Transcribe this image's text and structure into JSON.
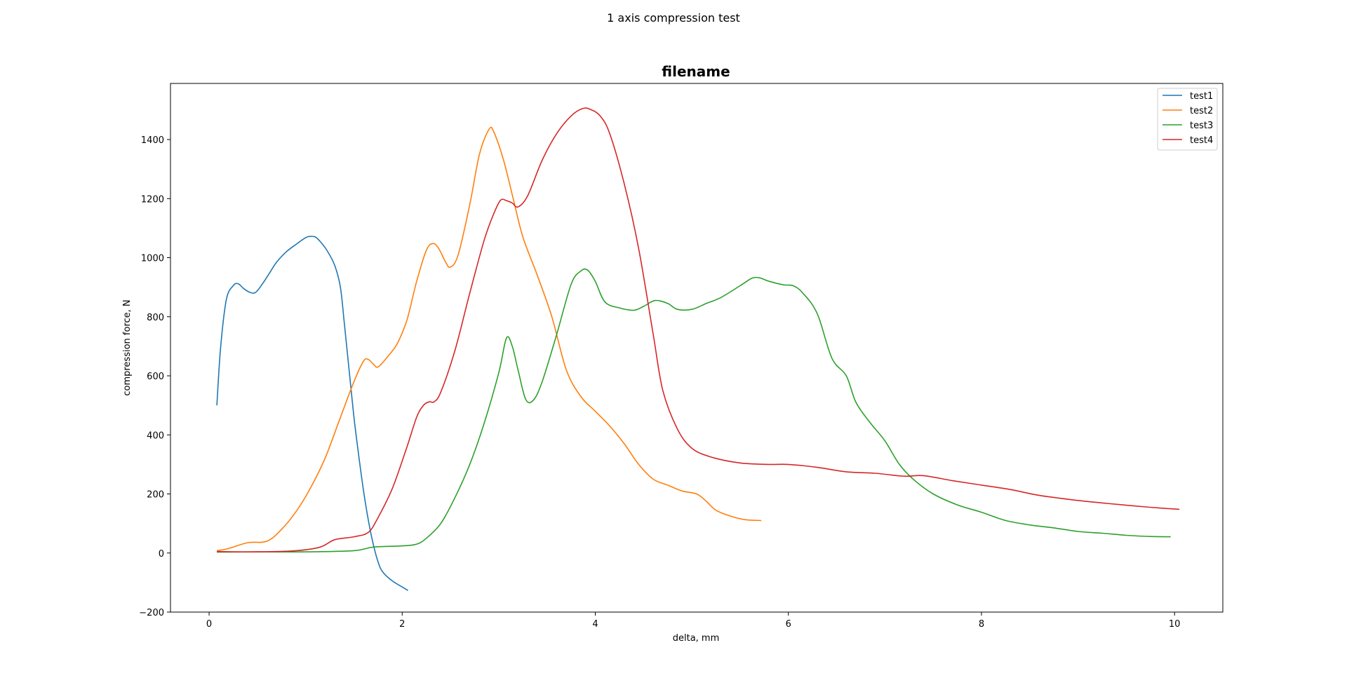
{
  "figure": {
    "suptitle": "1 axis compression test"
  },
  "chart_data": {
    "type": "line",
    "title": "filename",
    "xlabel": "delta, mm",
    "ylabel": "compression force, N",
    "xlim": [
      -0.4,
      10.5
    ],
    "ylim": [
      -200,
      1590
    ],
    "xticks": [
      0,
      2,
      4,
      6,
      8,
      10
    ],
    "yticks": [
      -200,
      0,
      200,
      400,
      600,
      800,
      1000,
      1200,
      1400
    ],
    "grid": false,
    "legend_position": "top-right",
    "series": [
      {
        "name": "test1",
        "color": "#1f77b4",
        "x": [
          0.08,
          0.12,
          0.18,
          0.25,
          0.3,
          0.36,
          0.42,
          0.48,
          0.55,
          0.62,
          0.7,
          0.8,
          0.9,
          1.0,
          1.05,
          1.1,
          1.15,
          1.22,
          1.3,
          1.36,
          1.4,
          1.45,
          1.5,
          1.55,
          1.6,
          1.65,
          1.7,
          1.75,
          1.8,
          1.9,
          2.0,
          2.06
        ],
        "y": [
          500,
          700,
          860,
          905,
          912,
          895,
          883,
          882,
          910,
          945,
          985,
          1020,
          1045,
          1068,
          1072,
          1070,
          1055,
          1025,
          975,
          900,
          780,
          620,
          460,
          330,
          210,
          110,
          30,
          -30,
          -65,
          -95,
          -115,
          -127
        ]
      },
      {
        "name": "test2",
        "color": "#ff7f0e",
        "x": [
          0.08,
          0.2,
          0.4,
          0.6,
          0.75,
          0.9,
          1.05,
          1.2,
          1.35,
          1.5,
          1.6,
          1.65,
          1.7,
          1.75,
          1.85,
          1.95,
          2.05,
          2.15,
          2.25,
          2.32,
          2.38,
          2.45,
          2.5,
          2.58,
          2.7,
          2.8,
          2.9,
          2.95,
          3.05,
          3.15,
          3.25,
          3.4,
          3.55,
          3.7,
          3.85,
          4.0,
          4.15,
          4.3,
          4.45,
          4.6,
          4.75,
          4.9,
          5.05,
          5.15,
          5.25,
          5.4,
          5.55,
          5.72
        ],
        "y": [
          8,
          15,
          35,
          40,
          80,
          140,
          220,
          320,
          450,
          580,
          650,
          655,
          640,
          630,
          665,
          710,
          790,
          920,
          1025,
          1048,
          1030,
          985,
          968,
          1010,
          1180,
          1350,
          1435,
          1425,
          1330,
          1200,
          1070,
          940,
          800,
          620,
          530,
          480,
          430,
          370,
          300,
          250,
          230,
          210,
          200,
          175,
          145,
          125,
          113,
          110
        ]
      },
      {
        "name": "test3",
        "color": "#2ca02c",
        "x": [
          0.08,
          0.5,
          1.0,
          1.5,
          1.7,
          2.0,
          2.15,
          2.25,
          2.4,
          2.55,
          2.7,
          2.85,
          3.0,
          3.08,
          3.14,
          3.2,
          3.28,
          3.36,
          3.45,
          3.6,
          3.75,
          3.85,
          3.92,
          4.0,
          4.1,
          4.25,
          4.4,
          4.5,
          4.62,
          4.75,
          4.85,
          5.0,
          5.15,
          5.3,
          5.5,
          5.62,
          5.7,
          5.8,
          5.95,
          6.05,
          6.15,
          6.3,
          6.45,
          6.6,
          6.7,
          6.85,
          7.0,
          7.15,
          7.3,
          7.5,
          7.75,
          8.0,
          8.25,
          8.5,
          8.75,
          9.0,
          9.25,
          9.5,
          9.75,
          9.96
        ],
        "y": [
          3,
          4,
          4,
          8,
          20,
          24,
          30,
          50,
          100,
          190,
          300,
          440,
          610,
          728,
          700,
          620,
          520,
          518,
          580,
          740,
          910,
          955,
          958,
          920,
          850,
          830,
          822,
          835,
          855,
          845,
          825,
          825,
          845,
          865,
          905,
          930,
          932,
          920,
          908,
          905,
          880,
          810,
          660,
          600,
          510,
          440,
          380,
          300,
          248,
          200,
          163,
          138,
          110,
          95,
          85,
          73,
          67,
          60,
          56,
          55
        ]
      },
      {
        "name": "test4",
        "color": "#d62728",
        "x": [
          0.08,
          0.5,
          0.9,
          1.15,
          1.3,
          1.5,
          1.65,
          1.75,
          1.9,
          2.05,
          2.15,
          2.22,
          2.28,
          2.33,
          2.4,
          2.55,
          2.7,
          2.85,
          2.95,
          3.02,
          3.08,
          3.14,
          3.2,
          3.3,
          3.45,
          3.6,
          3.75,
          3.87,
          3.95,
          4.05,
          4.15,
          4.3,
          4.45,
          4.6,
          4.7,
          4.85,
          5.0,
          5.2,
          5.5,
          5.8,
          6.0,
          6.3,
          6.6,
          6.9,
          7.2,
          7.4,
          7.7,
          8.0,
          8.3,
          8.6,
          9.0,
          9.3,
          9.7,
          10.05
        ],
        "y": [
          5,
          4,
          8,
          20,
          45,
          55,
          70,
          120,
          220,
          360,
          460,
          500,
          512,
          512,
          545,
          690,
          880,
          1060,
          1150,
          1195,
          1193,
          1185,
          1172,
          1210,
          1330,
          1420,
          1480,
          1505,
          1502,
          1480,
          1420,
          1250,
          1030,
          740,
          550,
          420,
          355,
          325,
          305,
          300,
          300,
          290,
          275,
          270,
          260,
          262,
          245,
          230,
          215,
          195,
          178,
          168,
          156,
          148
        ]
      }
    ]
  }
}
